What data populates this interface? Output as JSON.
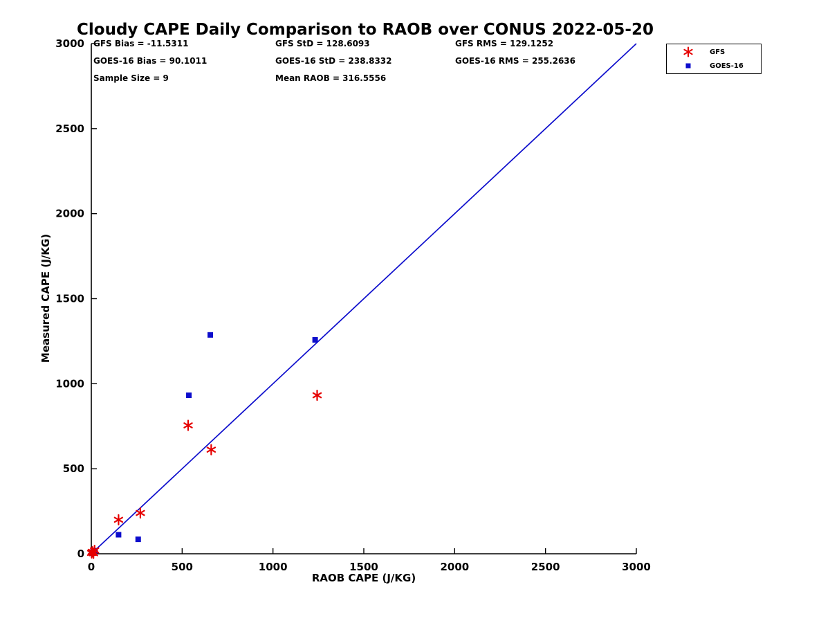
{
  "chart_data": {
    "type": "scatter",
    "title": "Cloudy CAPE Daily Comparison to RAOB over CONUS 2022-05-20",
    "xlabel": "RAOB CAPE (J/KG)",
    "ylabel": "Measured CAPE (J/KG)",
    "xlim": [
      0,
      3000
    ],
    "ylim": [
      0,
      3000
    ],
    "xticks": [
      0,
      500,
      1000,
      1500,
      2000,
      2500,
      3000
    ],
    "yticks": [
      0,
      500,
      1000,
      1500,
      2000,
      2500,
      3000
    ],
    "grid": false,
    "legend_position": "outside-top-right",
    "reference_line": {
      "name": "one-to-one-line",
      "from": [
        0,
        0
      ],
      "to": [
        3000,
        3000
      ],
      "color": "#0d0dcc"
    },
    "series": [
      {
        "name": "GFS",
        "marker": "asterisk",
        "color": "#e60000",
        "points": [
          [
            2,
            5
          ],
          [
            6,
            12
          ],
          [
            12,
            3
          ],
          [
            18,
            20
          ],
          [
            150,
            200
          ],
          [
            270,
            240
          ],
          [
            533,
            755
          ],
          [
            660,
            612
          ],
          [
            1243,
            932
          ]
        ]
      },
      {
        "name": "GOES-16",
        "marker": "square",
        "color": "#0d0dcc",
        "points": [
          [
            2,
            3
          ],
          [
            8,
            10
          ],
          [
            15,
            6
          ],
          [
            20,
            18
          ],
          [
            150,
            112
          ],
          [
            258,
            85
          ],
          [
            537,
            932
          ],
          [
            655,
            1287
          ],
          [
            1232,
            1258
          ]
        ]
      }
    ],
    "stats": {
      "gfs_bias": "GFS Bias = -11.5311",
      "gfs_std": "GFS StD = 128.6093",
      "gfs_rms": "GFS RMS = 129.1252",
      "goes_bias": "GOES-16 Bias = 90.1011",
      "goes_std": "GOES-16 StD = 238.8332",
      "goes_rms": "GOES-16 RMS = 255.2636",
      "sample_size": "Sample Size = 9",
      "mean_raob": "Mean RAOB = 316.5556"
    }
  }
}
